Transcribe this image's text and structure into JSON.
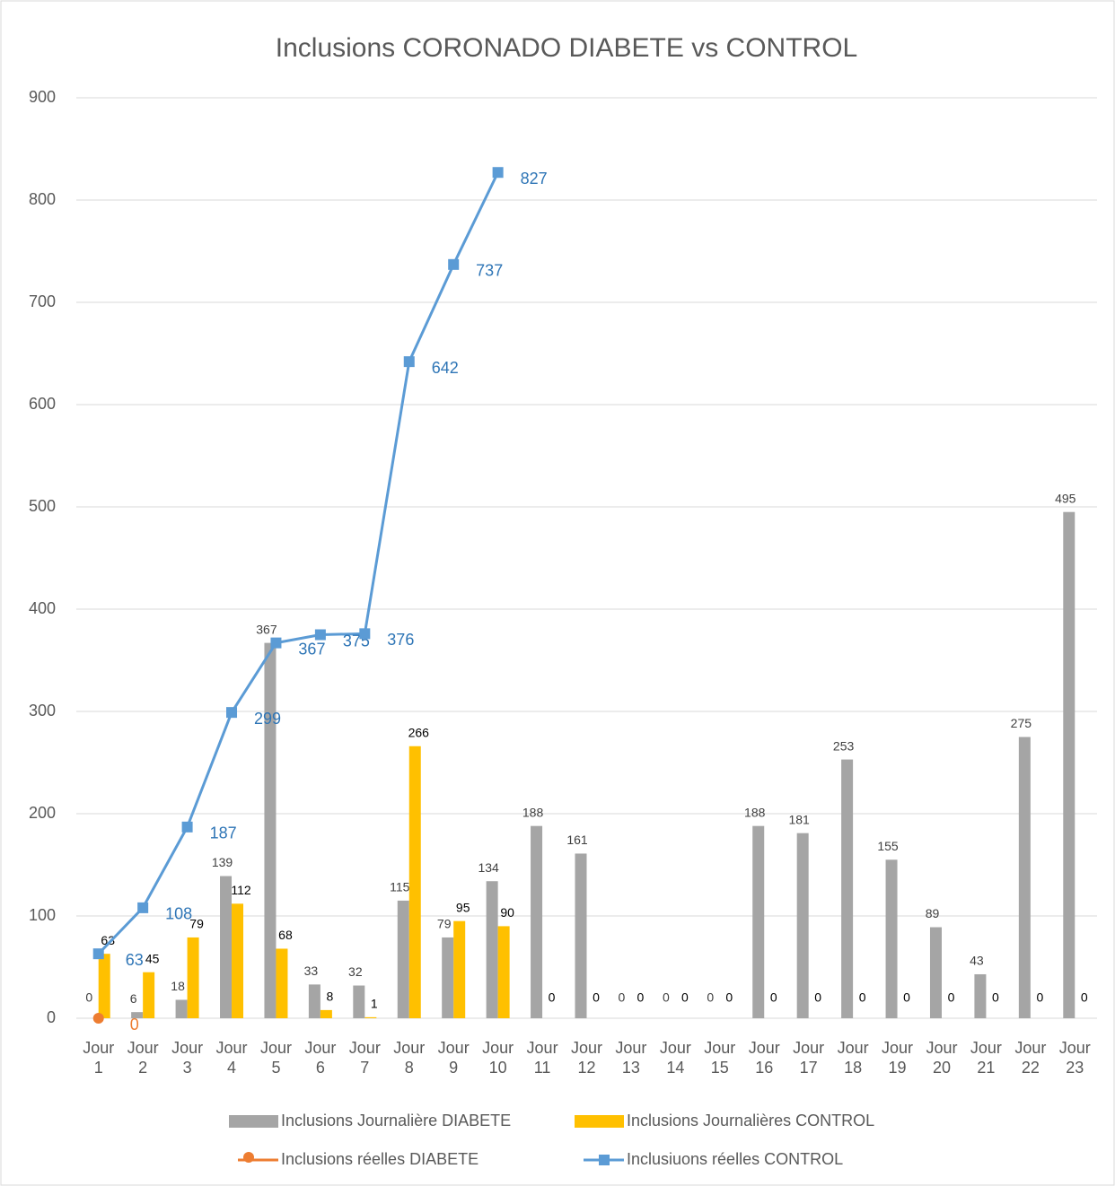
{
  "chart_data": {
    "type": "bar-line",
    "title": "Inclusions CORONADO DIABETE  vs CONTROL",
    "categories": [
      "Jour 1",
      "Jour 2",
      "Jour 3",
      "Jour 4",
      "Jour 5",
      "Jour 6",
      "Jour 7",
      "Jour 8",
      "Jour 9",
      "Jour 10",
      "Jour 11",
      "Jour 12",
      "Jour 13",
      "Jour 14",
      "Jour 15",
      "Jour 16",
      "Jour 17",
      "Jour 18",
      "Jour 19",
      "Jour 20",
      "Jour 21",
      "Jour 22",
      "Jour 23"
    ],
    "series": [
      {
        "name": "Inclusions Journalière DIABETE",
        "kind": "bar",
        "color": "#a5a5a5",
        "values": [
          0,
          6,
          18,
          139,
          367,
          33,
          32,
          115,
          79,
          134,
          188,
          161,
          0,
          0,
          0,
          188,
          181,
          253,
          155,
          89,
          43,
          275,
          495
        ]
      },
      {
        "name": "Inclusions Journalières CONTROL",
        "kind": "bar",
        "color": "#ffc000",
        "values": [
          63,
          45,
          79,
          112,
          68,
          8,
          1,
          266,
          95,
          90,
          0,
          0,
          0,
          0,
          0,
          0,
          0,
          0,
          0,
          0,
          0,
          0,
          0
        ]
      },
      {
        "name": "Inclusions réelles DIABETE",
        "kind": "line",
        "marker": "circle",
        "color": "#ed7d31",
        "values": [
          0,
          null,
          null,
          null,
          null,
          null,
          null,
          null,
          null,
          null,
          null,
          null,
          null,
          null,
          null,
          null,
          null,
          null,
          null,
          null,
          null,
          null,
          null
        ]
      },
      {
        "name": "Inclusiuons réelles CONTROL",
        "kind": "line",
        "marker": "square",
        "color": "#5b9bd5",
        "values": [
          63,
          108,
          187,
          299,
          367,
          375,
          376,
          642,
          737,
          827,
          null,
          null,
          null,
          null,
          null,
          null,
          null,
          null,
          null,
          null,
          null,
          null,
          null
        ]
      }
    ],
    "ylim": [
      0,
      900
    ],
    "yticks": [
      0,
      100,
      200,
      300,
      400,
      500,
      600,
      700,
      800,
      900
    ],
    "grid": true,
    "legend": "bottom"
  }
}
